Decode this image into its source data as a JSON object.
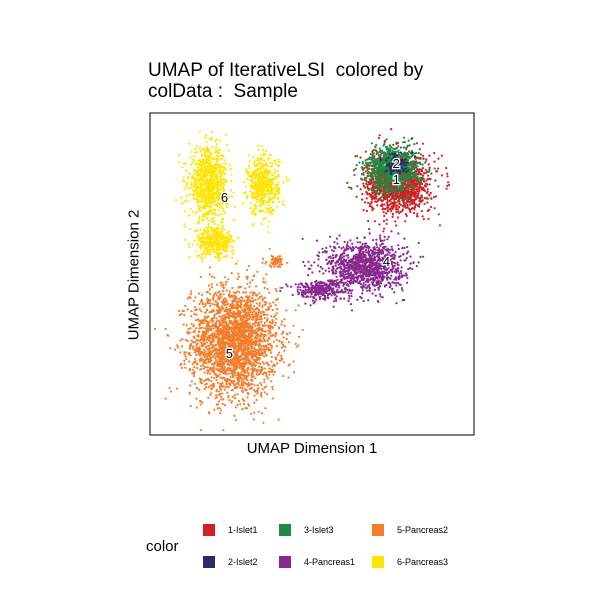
{
  "chart_data": {
    "type": "scatter",
    "title_line1": "UMAP of IterativeLSI  colored by",
    "title_line2": "colData :  Sample",
    "xlabel": "UMAP Dimension 1",
    "ylabel": "UMAP Dimension 2",
    "xlim": [
      -10,
      10
    ],
    "ylim": [
      -10,
      10
    ],
    "grid": false,
    "legend_title": "color",
    "legend_placement": "bottom",
    "series": [
      {
        "name": "1-Islet1",
        "color": "#D51F26",
        "label": "1",
        "clusters": [
          {
            "cx": 5.3,
            "cy": 5.6,
            "sx": 1.6,
            "sy": 1.5,
            "n": 1400
          }
        ]
      },
      {
        "name": "2-Islet2",
        "color": "#272E6A",
        "label": "2",
        "clusters": [
          {
            "cx": 5.2,
            "cy": 6.8,
            "sx": 0.6,
            "sy": 0.5,
            "n": 120
          }
        ]
      },
      {
        "name": "3-Islet3",
        "color": "#208A42",
        "label": "",
        "clusters": [
          {
            "cx": 5.0,
            "cy": 6.5,
            "sx": 1.4,
            "sy": 1.2,
            "n": 900
          }
        ]
      },
      {
        "name": "4-Pancreas1",
        "color": "#89288F",
        "label": "4",
        "clusters": [
          {
            "cx": 3.3,
            "cy": 0.5,
            "sx": 2.0,
            "sy": 1.3,
            "n": 1100
          },
          {
            "cx": 0.5,
            "cy": -1.0,
            "sx": 1.4,
            "sy": 0.5,
            "n": 300
          }
        ]
      },
      {
        "name": "5-Pancreas2",
        "color": "#F47D2B",
        "label": "5",
        "clusters": [
          {
            "cx": -4.8,
            "cy": -4.2,
            "sx": 2.2,
            "sy": 2.8,
            "n": 2600
          },
          {
            "cx": -2.2,
            "cy": 0.8,
            "sx": 0.5,
            "sy": 0.3,
            "n": 60
          }
        ]
      },
      {
        "name": "6-Pancreas3",
        "color": "#FEE500",
        "label": "6",
        "clusters": [
          {
            "cx": -6.4,
            "cy": 5.6,
            "sx": 1.0,
            "sy": 1.8,
            "n": 800
          },
          {
            "cx": -3.0,
            "cy": 5.5,
            "sx": 0.8,
            "sy": 1.5,
            "n": 500
          },
          {
            "cx": -6.0,
            "cy": 2.0,
            "sx": 1.0,
            "sy": 0.8,
            "n": 350
          }
        ]
      }
    ],
    "cluster_labels": [
      {
        "text": "2",
        "x": 5.2,
        "y": 6.8
      },
      {
        "text": "1",
        "x": 5.2,
        "y": 5.8
      },
      {
        "text": "4",
        "x": 4.6,
        "y": 0.7
      },
      {
        "text": "5",
        "x": -5.1,
        "y": -5.0
      },
      {
        "text": "6",
        "x": -5.4,
        "y": 4.7
      }
    ]
  }
}
